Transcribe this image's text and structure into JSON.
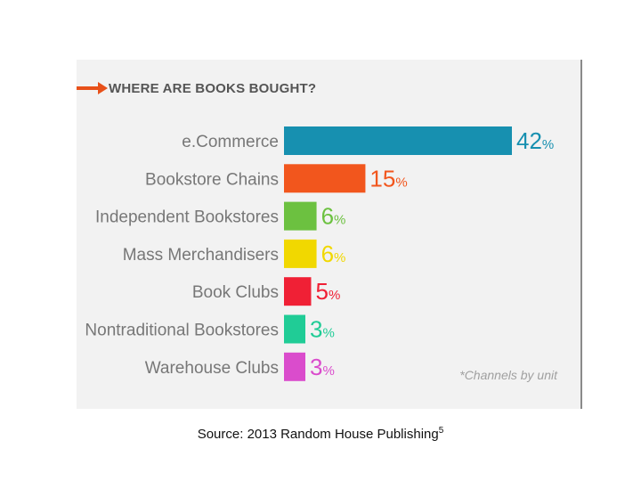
{
  "header": {
    "title": "WHERE ARE BOOKS BOUGHT?",
    "arrow_color": "#e8511a"
  },
  "footnote": "*Channels by unit",
  "caption": {
    "text": "Source: 2013 Random House Publishing",
    "superscript": "5"
  },
  "chart_data": {
    "type": "bar",
    "orientation": "horizontal",
    "title": "WHERE ARE BOOKS BOUGHT?",
    "categories": [
      "e.Commerce",
      "Bookstore Chains",
      "Independent Bookstores",
      "Mass Merchandisers",
      "Book Clubs",
      "Nontraditional Bookstores",
      "Warehouse Clubs"
    ],
    "values": [
      42,
      15,
      6,
      6,
      5,
      3,
      3
    ],
    "value_suffix": "%",
    "colors": [
      "#1790b0",
      "#f2561d",
      "#6cc140",
      "#f1d800",
      "#f02035",
      "#20cc96",
      "#da4ccc"
    ],
    "xlim": [
      0,
      42
    ],
    "grid": false,
    "legend": "none"
  }
}
